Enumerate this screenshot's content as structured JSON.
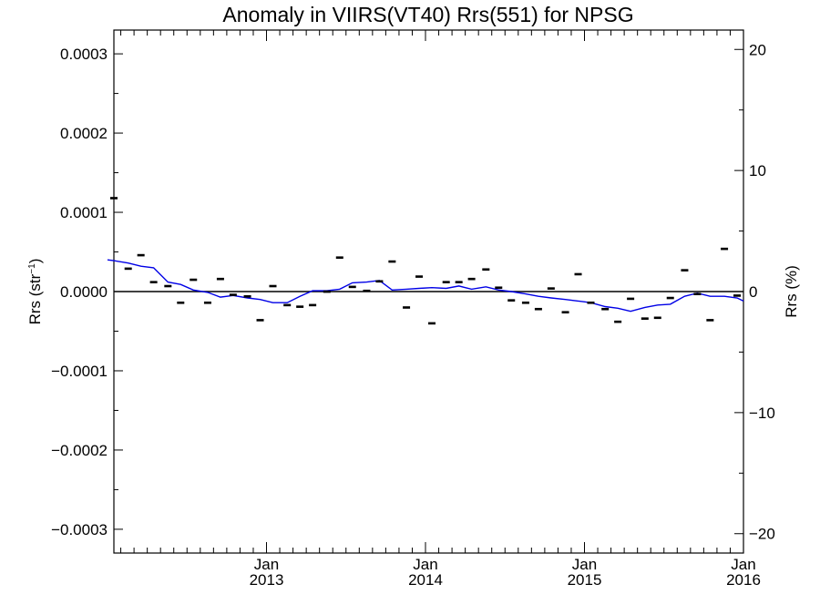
{
  "chart_data": {
    "type": "scatter",
    "title": "Anomaly in VIIRS(VT40) Rrs(551) for NPSG",
    "ylabel_left_main": "Rrs (str",
    "ylabel_left_sup": "−1",
    "ylabel_left_close": ")",
    "ylabel_right": "Rrs (%)",
    "ylim_left": [
      -0.00033,
      0.00033
    ],
    "ylim_right": [
      -21.6,
      21.6
    ],
    "xlim": [
      2012.04,
      2016.0
    ],
    "left_ticks": [
      {
        "value": 0.0003,
        "label": "0.0003"
      },
      {
        "value": 0.0002,
        "label": "0.0002"
      },
      {
        "value": 0.0001,
        "label": "0.0001"
      },
      {
        "value": 0.0,
        "label": "0.0000"
      },
      {
        "value": -0.0001,
        "label": "−0.0001"
      },
      {
        "value": -0.0002,
        "label": "−0.0002"
      },
      {
        "value": -0.0003,
        "label": "−0.0003"
      }
    ],
    "right_ticks": [
      {
        "value": 20,
        "label": "20"
      },
      {
        "value": 10,
        "label": "10"
      },
      {
        "value": 0,
        "label": "0"
      },
      {
        "value": -10,
        "label": "−10"
      },
      {
        "value": -20,
        "label": "−20"
      }
    ],
    "x_ticks": [
      {
        "value": 2013.0,
        "month": "Jan",
        "year": "2013"
      },
      {
        "value": 2014.0,
        "month": "Jan",
        "year": "2014"
      },
      {
        "value": 2015.0,
        "month": "Jan",
        "year": "2015"
      },
      {
        "value": 2016.0,
        "month": "Jan",
        "year": "2016"
      }
    ],
    "zero_line": 0,
    "grid": false,
    "series": [
      {
        "kind": "monthly-anomaly-markers",
        "color": "#000000",
        "x": [
          2012.04,
          2012.13,
          2012.21,
          2012.29,
          2012.38,
          2012.46,
          2012.54,
          2012.63,
          2012.71,
          2012.79,
          2012.88,
          2012.96,
          2013.04,
          2013.13,
          2013.21,
          2013.29,
          2013.38,
          2013.46,
          2013.54,
          2013.63,
          2013.71,
          2013.79,
          2013.88,
          2013.96,
          2014.04,
          2014.13,
          2014.21,
          2014.29,
          2014.38,
          2014.46,
          2014.54,
          2014.63,
          2014.71,
          2014.79,
          2014.88,
          2014.96,
          2015.04,
          2015.13,
          2015.21,
          2015.29,
          2015.38,
          2015.46,
          2015.54,
          2015.63,
          2015.71,
          2015.79,
          2015.88,
          2015.96
        ],
        "y": [
          0.000118,
          2.9e-05,
          4.6e-05,
          1.2e-05,
          7e-06,
          -1.4e-05,
          1.5e-05,
          -1.4e-05,
          1.6e-05,
          -4e-06,
          -6e-06,
          -3.6e-05,
          7e-06,
          -1.7e-05,
          -1.9e-05,
          -1.7e-05,
          0.0,
          4.3e-05,
          6e-06,
          1e-06,
          1.3e-05,
          3.8e-05,
          -2e-05,
          1.9e-05,
          -4e-05,
          1.2e-05,
          1.2e-05,
          1.6e-05,
          2.8e-05,
          5e-06,
          -1.1e-05,
          -1.4e-05,
          -2.2e-05,
          4e-06,
          -2.6e-05,
          2.2e-05,
          -1.4e-05,
          -2.2e-05,
          -3.8e-05,
          -9e-06,
          -3.4e-05,
          -3.3e-05,
          -8e-06,
          2.7e-05,
          -3e-06,
          -3.6e-05,
          5.4e-05,
          -5e-06
        ]
      },
      {
        "kind": "smoothed-anomaly-line",
        "color": "#0000e6",
        "x": [
          2012.0,
          2012.04,
          2012.13,
          2012.21,
          2012.29,
          2012.38,
          2012.46,
          2012.54,
          2012.63,
          2012.71,
          2012.79,
          2012.88,
          2012.96,
          2013.04,
          2013.13,
          2013.21,
          2013.29,
          2013.38,
          2013.46,
          2013.54,
          2013.63,
          2013.71,
          2013.79,
          2013.88,
          2013.96,
          2014.04,
          2014.13,
          2014.21,
          2014.29,
          2014.38,
          2014.46,
          2014.54,
          2014.63,
          2014.71,
          2014.79,
          2014.88,
          2014.96,
          2015.04,
          2015.13,
          2015.21,
          2015.29,
          2015.38,
          2015.46,
          2015.54,
          2015.63,
          2015.71,
          2015.79,
          2015.88,
          2015.96,
          2016.0
        ],
        "y": [
          4e-05,
          3.9e-05,
          3.6e-05,
          3.2e-05,
          3e-05,
          1.2e-05,
          9e-06,
          2e-06,
          -1e-06,
          -7e-06,
          -5e-06,
          -8e-06,
          -1e-05,
          -1.4e-05,
          -1.4e-05,
          -6e-06,
          1e-06,
          1e-06,
          3e-06,
          1.1e-05,
          1.2e-05,
          1.4e-05,
          2e-06,
          3e-06,
          4e-06,
          5e-06,
          4e-06,
          7e-06,
          3e-06,
          6e-06,
          2e-06,
          0.0,
          -3e-06,
          -6e-06,
          -8e-06,
          -1e-05,
          -1.2e-05,
          -1.4e-05,
          -1.9e-05,
          -2.1e-05,
          -2.5e-05,
          -2e-05,
          -1.7e-05,
          -1.6e-05,
          -6e-06,
          -2e-06,
          -6e-06,
          -6e-06,
          -8e-06,
          -1.2e-05
        ]
      }
    ]
  }
}
